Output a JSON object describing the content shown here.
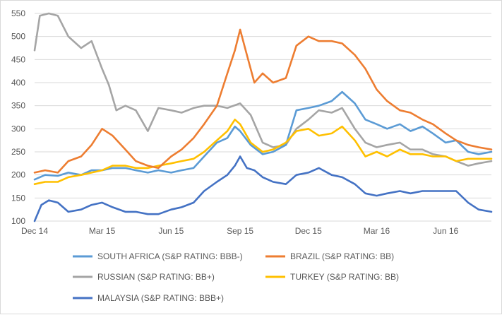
{
  "chart_data": {
    "type": "line",
    "title": "",
    "xlabel": "",
    "ylabel": "",
    "ylim": [
      100,
      550
    ],
    "yticks": [
      "100",
      "150",
      "200",
      "250",
      "300",
      "350",
      "400",
      "450",
      "500",
      "550"
    ],
    "grid": "horizontal",
    "legend_position": "bottom",
    "x_range": [
      "2014-12-01",
      "2016-08-01"
    ],
    "xticks": [
      {
        "label": "Dec 14",
        "date": "2014-12-01"
      },
      {
        "label": "Mar 15",
        "date": "2015-03-01"
      },
      {
        "label": "Jun 15",
        "date": "2015-06-01"
      },
      {
        "label": "Sep 15",
        "date": "2015-09-01"
      },
      {
        "label": "Dec 15",
        "date": "2015-12-01"
      },
      {
        "label": "Mar 16",
        "date": "2016-03-01"
      },
      {
        "label": "Jun 16",
        "date": "2016-06-01"
      }
    ],
    "series": [
      {
        "name": "SOUTH AFRICA (S&P RATING: BBB-)",
        "color": "#5b9bd5",
        "points": [
          [
            "2014-12-01",
            190
          ],
          [
            "2014-12-15",
            200
          ],
          [
            "2015-01-01",
            198
          ],
          [
            "2015-01-15",
            205
          ],
          [
            "2015-02-01",
            200
          ],
          [
            "2015-02-15",
            210
          ],
          [
            "2015-03-01",
            210
          ],
          [
            "2015-03-15",
            215
          ],
          [
            "2015-04-01",
            215
          ],
          [
            "2015-04-15",
            210
          ],
          [
            "2015-05-01",
            205
          ],
          [
            "2015-05-15",
            210
          ],
          [
            "2015-06-01",
            205
          ],
          [
            "2015-06-15",
            210
          ],
          [
            "2015-07-01",
            215
          ],
          [
            "2015-07-15",
            240
          ],
          [
            "2015-08-01",
            270
          ],
          [
            "2015-08-15",
            280
          ],
          [
            "2015-08-25",
            305
          ],
          [
            "2015-09-01",
            295
          ],
          [
            "2015-09-15",
            265
          ],
          [
            "2015-10-01",
            245
          ],
          [
            "2015-10-15",
            250
          ],
          [
            "2015-11-01",
            265
          ],
          [
            "2015-11-15",
            340
          ],
          [
            "2015-12-01",
            345
          ],
          [
            "2015-12-15",
            350
          ],
          [
            "2016-01-01",
            360
          ],
          [
            "2016-01-15",
            380
          ],
          [
            "2016-02-01",
            355
          ],
          [
            "2016-02-15",
            320
          ],
          [
            "2016-03-01",
            310
          ],
          [
            "2016-03-15",
            300
          ],
          [
            "2016-04-01",
            310
          ],
          [
            "2016-04-15",
            295
          ],
          [
            "2016-05-01",
            305
          ],
          [
            "2016-05-15",
            290
          ],
          [
            "2016-06-01",
            270
          ],
          [
            "2016-06-15",
            275
          ],
          [
            "2016-07-01",
            250
          ],
          [
            "2016-07-15",
            245
          ],
          [
            "2016-08-01",
            250
          ]
        ]
      },
      {
        "name": "BRAZIL (S&P RATING: BB)",
        "color": "#ed7d31",
        "points": [
          [
            "2014-12-01",
            205
          ],
          [
            "2014-12-15",
            210
          ],
          [
            "2015-01-01",
            205
          ],
          [
            "2015-01-15",
            230
          ],
          [
            "2015-02-01",
            240
          ],
          [
            "2015-02-15",
            265
          ],
          [
            "2015-03-01",
            300
          ],
          [
            "2015-03-15",
            285
          ],
          [
            "2015-04-01",
            255
          ],
          [
            "2015-04-15",
            230
          ],
          [
            "2015-05-01",
            220
          ],
          [
            "2015-05-15",
            215
          ],
          [
            "2015-06-01",
            240
          ],
          [
            "2015-06-15",
            255
          ],
          [
            "2015-07-01",
            280
          ],
          [
            "2015-07-15",
            310
          ],
          [
            "2015-08-01",
            350
          ],
          [
            "2015-08-15",
            420
          ],
          [
            "2015-08-25",
            470
          ],
          [
            "2015-09-01",
            515
          ],
          [
            "2015-09-10",
            460
          ],
          [
            "2015-09-20",
            400
          ],
          [
            "2015-10-01",
            420
          ],
          [
            "2015-10-15",
            400
          ],
          [
            "2015-11-01",
            410
          ],
          [
            "2015-11-15",
            480
          ],
          [
            "2015-12-01",
            500
          ],
          [
            "2015-12-15",
            490
          ],
          [
            "2016-01-01",
            490
          ],
          [
            "2016-01-15",
            485
          ],
          [
            "2016-02-01",
            460
          ],
          [
            "2016-02-15",
            430
          ],
          [
            "2016-03-01",
            385
          ],
          [
            "2016-03-15",
            360
          ],
          [
            "2016-04-01",
            340
          ],
          [
            "2016-04-15",
            335
          ],
          [
            "2016-05-01",
            320
          ],
          [
            "2016-05-15",
            310
          ],
          [
            "2016-06-01",
            290
          ],
          [
            "2016-06-15",
            275
          ],
          [
            "2016-07-01",
            265
          ],
          [
            "2016-07-15",
            260
          ],
          [
            "2016-08-01",
            255
          ]
        ]
      },
      {
        "name": "RUSSIAN (S&P RATING: BB+)",
        "color": "#a5a5a5",
        "points": [
          [
            "2014-12-01",
            470
          ],
          [
            "2014-12-08",
            545
          ],
          [
            "2014-12-20",
            550
          ],
          [
            "2015-01-01",
            545
          ],
          [
            "2015-01-15",
            500
          ],
          [
            "2015-02-01",
            475
          ],
          [
            "2015-02-15",
            490
          ],
          [
            "2015-03-01",
            430
          ],
          [
            "2015-03-10",
            395
          ],
          [
            "2015-03-20",
            340
          ],
          [
            "2015-04-01",
            350
          ],
          [
            "2015-04-15",
            340
          ],
          [
            "2015-05-01",
            295
          ],
          [
            "2015-05-15",
            345
          ],
          [
            "2015-06-01",
            340
          ],
          [
            "2015-06-15",
            335
          ],
          [
            "2015-07-01",
            345
          ],
          [
            "2015-07-15",
            350
          ],
          [
            "2015-08-01",
            350
          ],
          [
            "2015-08-15",
            345
          ],
          [
            "2015-09-01",
            355
          ],
          [
            "2015-09-15",
            330
          ],
          [
            "2015-10-01",
            270
          ],
          [
            "2015-10-15",
            260
          ],
          [
            "2015-11-01",
            265
          ],
          [
            "2015-11-15",
            300
          ],
          [
            "2015-12-01",
            320
          ],
          [
            "2015-12-15",
            340
          ],
          [
            "2016-01-01",
            335
          ],
          [
            "2016-01-15",
            345
          ],
          [
            "2016-02-01",
            300
          ],
          [
            "2016-02-15",
            270
          ],
          [
            "2016-03-01",
            260
          ],
          [
            "2016-03-15",
            265
          ],
          [
            "2016-04-01",
            270
          ],
          [
            "2016-04-15",
            255
          ],
          [
            "2016-05-01",
            255
          ],
          [
            "2016-05-15",
            245
          ],
          [
            "2016-06-01",
            240
          ],
          [
            "2016-06-15",
            230
          ],
          [
            "2016-07-01",
            220
          ],
          [
            "2016-07-15",
            225
          ],
          [
            "2016-08-01",
            230
          ]
        ]
      },
      {
        "name": "TURKEY (S&P RATING: BB)",
        "color": "#ffc000",
        "points": [
          [
            "2014-12-01",
            180
          ],
          [
            "2014-12-15",
            185
          ],
          [
            "2015-01-01",
            185
          ],
          [
            "2015-01-15",
            195
          ],
          [
            "2015-02-01",
            200
          ],
          [
            "2015-02-15",
            205
          ],
          [
            "2015-03-01",
            210
          ],
          [
            "2015-03-15",
            220
          ],
          [
            "2015-04-01",
            220
          ],
          [
            "2015-04-15",
            215
          ],
          [
            "2015-05-01",
            215
          ],
          [
            "2015-05-15",
            220
          ],
          [
            "2015-06-01",
            225
          ],
          [
            "2015-06-15",
            230
          ],
          [
            "2015-07-01",
            235
          ],
          [
            "2015-07-15",
            250
          ],
          [
            "2015-08-01",
            275
          ],
          [
            "2015-08-15",
            295
          ],
          [
            "2015-08-25",
            320
          ],
          [
            "2015-09-01",
            310
          ],
          [
            "2015-09-15",
            270
          ],
          [
            "2015-10-01",
            250
          ],
          [
            "2015-10-15",
            255
          ],
          [
            "2015-11-01",
            270
          ],
          [
            "2015-11-15",
            295
          ],
          [
            "2015-12-01",
            300
          ],
          [
            "2015-12-15",
            285
          ],
          [
            "2016-01-01",
            290
          ],
          [
            "2016-01-15",
            305
          ],
          [
            "2016-02-01",
            275
          ],
          [
            "2016-02-15",
            240
          ],
          [
            "2016-03-01",
            250
          ],
          [
            "2016-03-15",
            240
          ],
          [
            "2016-04-01",
            255
          ],
          [
            "2016-04-15",
            245
          ],
          [
            "2016-05-01",
            245
          ],
          [
            "2016-05-15",
            240
          ],
          [
            "2016-06-01",
            240
          ],
          [
            "2016-06-15",
            230
          ],
          [
            "2016-07-01",
            235
          ],
          [
            "2016-07-15",
            235
          ],
          [
            "2016-08-01",
            235
          ]
        ]
      },
      {
        "name": "MALAYSIA (S&P RATING: BBB+)",
        "color": "#4472c4",
        "points": [
          [
            "2014-12-01",
            100
          ],
          [
            "2014-12-10",
            135
          ],
          [
            "2014-12-20",
            145
          ],
          [
            "2015-01-01",
            140
          ],
          [
            "2015-01-15",
            120
          ],
          [
            "2015-02-01",
            125
          ],
          [
            "2015-02-15",
            135
          ],
          [
            "2015-03-01",
            140
          ],
          [
            "2015-03-15",
            130
          ],
          [
            "2015-04-01",
            120
          ],
          [
            "2015-04-15",
            120
          ],
          [
            "2015-05-01",
            115
          ],
          [
            "2015-05-15",
            115
          ],
          [
            "2015-06-01",
            125
          ],
          [
            "2015-06-15",
            130
          ],
          [
            "2015-07-01",
            140
          ],
          [
            "2015-07-15",
            165
          ],
          [
            "2015-08-01",
            185
          ],
          [
            "2015-08-15",
            200
          ],
          [
            "2015-08-25",
            220
          ],
          [
            "2015-09-01",
            240
          ],
          [
            "2015-09-10",
            215
          ],
          [
            "2015-09-20",
            210
          ],
          [
            "2015-10-01",
            195
          ],
          [
            "2015-10-15",
            185
          ],
          [
            "2015-11-01",
            180
          ],
          [
            "2015-11-15",
            200
          ],
          [
            "2015-12-01",
            205
          ],
          [
            "2015-12-15",
            215
          ],
          [
            "2016-01-01",
            200
          ],
          [
            "2016-01-15",
            195
          ],
          [
            "2016-02-01",
            180
          ],
          [
            "2016-02-15",
            160
          ],
          [
            "2016-03-01",
            155
          ],
          [
            "2016-03-15",
            160
          ],
          [
            "2016-04-01",
            165
          ],
          [
            "2016-04-15",
            160
          ],
          [
            "2016-05-01",
            165
          ],
          [
            "2016-05-15",
            165
          ],
          [
            "2016-06-01",
            165
          ],
          [
            "2016-06-15",
            165
          ],
          [
            "2016-07-01",
            140
          ],
          [
            "2016-07-15",
            125
          ],
          [
            "2016-08-01",
            120
          ]
        ]
      }
    ]
  }
}
